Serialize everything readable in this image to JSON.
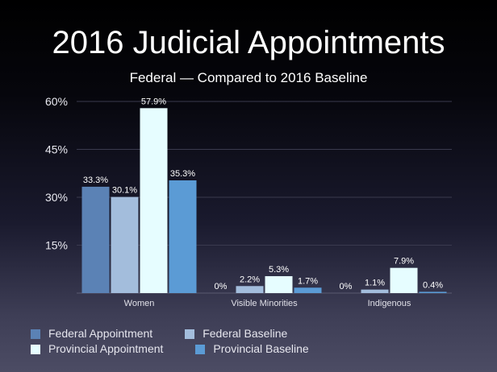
{
  "chart_data": {
    "type": "bar",
    "title": "2016 Judicial Appointments",
    "subtitle": "Federal — Compared to 2016 Baseline",
    "categories": [
      "Women",
      "Visible Minorities",
      "Indigenous"
    ],
    "series": [
      {
        "name": "Federal Appointment",
        "color": "#5b82b5",
        "values": [
          33.3,
          0,
          0
        ],
        "labels": [
          "33.3%",
          "0%",
          "0%"
        ]
      },
      {
        "name": "Federal Baseline",
        "color": "#a3bddc",
        "values": [
          30.1,
          2.2,
          1.1
        ],
        "labels": [
          "30.1%",
          "2.2%",
          "1.1%"
        ]
      },
      {
        "name": "Provincial Appointment",
        "color": "#e6fdff",
        "values": [
          57.9,
          5.3,
          7.9
        ],
        "labels": [
          "57.9%",
          "5.3%",
          "7.9%"
        ]
      },
      {
        "name": "Provincial Baseline",
        "color": "#5b9bd5",
        "values": [
          35.3,
          1.7,
          0.4
        ],
        "labels": [
          "35.3%",
          "1.7%",
          "0.4%"
        ]
      }
    ],
    "yticks": [
      15,
      30,
      45,
      60
    ],
    "ytick_labels": [
      "15%",
      "30%",
      "45%",
      "60%"
    ],
    "ylim": [
      0,
      60
    ],
    "grid": true,
    "legend_position": "bottom-left"
  }
}
